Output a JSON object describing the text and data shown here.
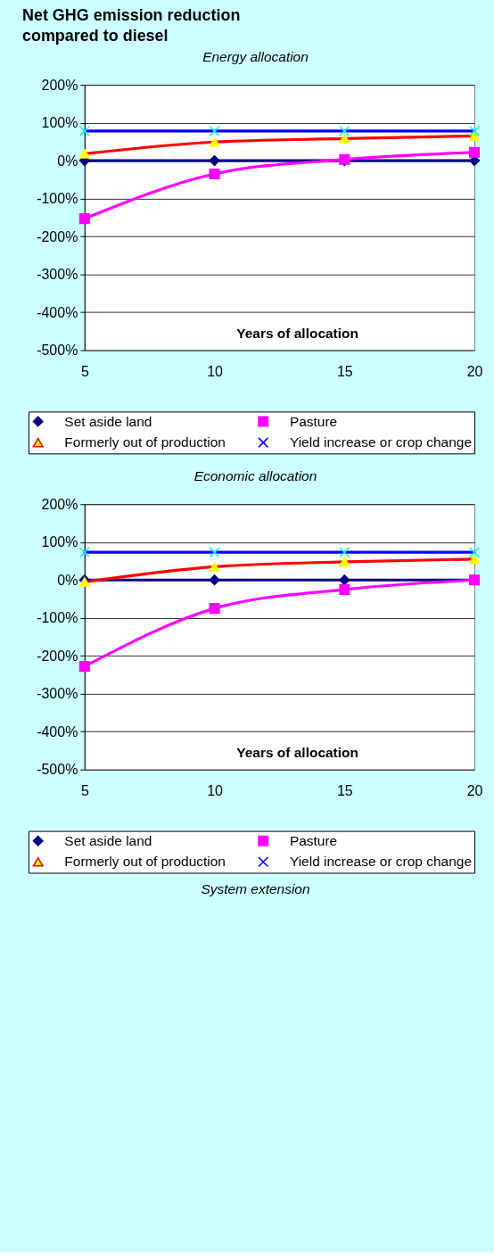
{
  "chart_data": [
    {
      "type": "other",
      "title": "Net GHG emission reduction compared to diesel"
    },
    {
      "type": "line",
      "title": "Energy allocation",
      "xlabel": "Years of allocation",
      "x": [
        5,
        10,
        15,
        20
      ],
      "xlim": [
        5,
        20
      ],
      "xticks": [
        5,
        10,
        15,
        20
      ],
      "ylim": [
        -500,
        200
      ],
      "yticks": [
        {
          "value": -500,
          "label": "-500%"
        },
        {
          "value": -400,
          "label": "-400%"
        },
        {
          "value": -300,
          "label": "-300%"
        },
        {
          "value": -200,
          "label": "-200%"
        },
        {
          "value": -100,
          "label": "-100%"
        },
        {
          "value": 0,
          "label": "0%"
        },
        {
          "value": 100,
          "label": "100%"
        },
        {
          "value": 200,
          "label": "200%"
        }
      ],
      "grid": "y",
      "legend": "bottom",
      "series": [
        {
          "name": "Set aside land",
          "color": "#000080",
          "marker": "diamond",
          "values": [
            0,
            0,
            0,
            0
          ]
        },
        {
          "name": "Pasture",
          "color": "#ff00ff",
          "marker": "square",
          "values": [
            -153,
            -35,
            3,
            22
          ]
        },
        {
          "name": "Formerly out of production",
          "color": "#ff0000",
          "colors": [
            "#ffff00",
            "#ffff00",
            "#ffff00",
            "#ffff00"
          ],
          "marker": "triangle",
          "values": [
            18,
            49,
            58,
            65
          ]
        },
        {
          "name": "Yield increase or crop change",
          "color": "#0000ff",
          "colors": [
            "#00ffff",
            "#00ffff",
            "#00ffff",
            "#00ffff"
          ],
          "marker": "cross",
          "values": [
            78,
            78,
            78,
            78
          ]
        }
      ]
    },
    {
      "type": "line",
      "title": "Economic allocation",
      "xlabel": "Years of allocation",
      "x": [
        5,
        10,
        15,
        20
      ],
      "xlim": [
        5,
        20
      ],
      "xticks": [
        5,
        10,
        15,
        20
      ],
      "ylim": [
        -500,
        200
      ],
      "yticks": [
        {
          "value": -500,
          "label": "-500%"
        },
        {
          "value": -400,
          "label": "-400%"
        },
        {
          "value": -300,
          "label": "-300%"
        },
        {
          "value": -200,
          "label": "-200%"
        },
        {
          "value": -100,
          "label": "-100%"
        },
        {
          "value": 0,
          "label": "0%"
        },
        {
          "value": 100,
          "label": "100%"
        },
        {
          "value": 200,
          "label": "200%"
        }
      ],
      "grid": "y",
      "legend": "bottom",
      "series": [
        {
          "name": "Set aside land",
          "color": "#000080",
          "marker": "diamond",
          "values": [
            0,
            0,
            0,
            0
          ]
        },
        {
          "name": "Pasture",
          "color": "#ff00ff",
          "marker": "square",
          "values": [
            -228,
            -75,
            -25,
            0
          ]
        },
        {
          "name": "Formerly out of production",
          "color": "#ff0000",
          "colors": [
            "#ffff00",
            "#ffff00",
            "#ffff00",
            "#ffff00"
          ],
          "marker": "triangle",
          "values": [
            -5,
            35,
            48,
            55
          ]
        },
        {
          "name": "Yield increase or crop change",
          "color": "#0000ff",
          "colors": [
            "#00ffff",
            "#00ffff",
            "#00ffff",
            "#00ffff"
          ],
          "marker": "cross",
          "values": [
            73,
            73,
            73,
            73
          ]
        }
      ]
    },
    {
      "type": "other",
      "title": "System extension"
    }
  ]
}
